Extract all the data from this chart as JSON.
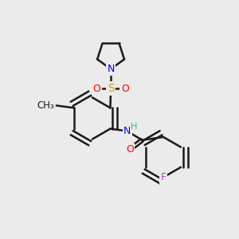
{
  "background_color": "#ebebeb",
  "bond_color": "#1a1a1a",
  "bond_width": 1.8,
  "atom_colors": {
    "N": "#0000ff",
    "O": "#ff0000",
    "S": "#ccaa00",
    "F": "#cc44cc",
    "H": "#44aaaa",
    "C": "#1a1a1a"
  },
  "font_size": 9,
  "fig_size": [
    3.0,
    3.0
  ],
  "dpi": 100,
  "xlim": [
    0,
    10
  ],
  "ylim": [
    0,
    10
  ]
}
